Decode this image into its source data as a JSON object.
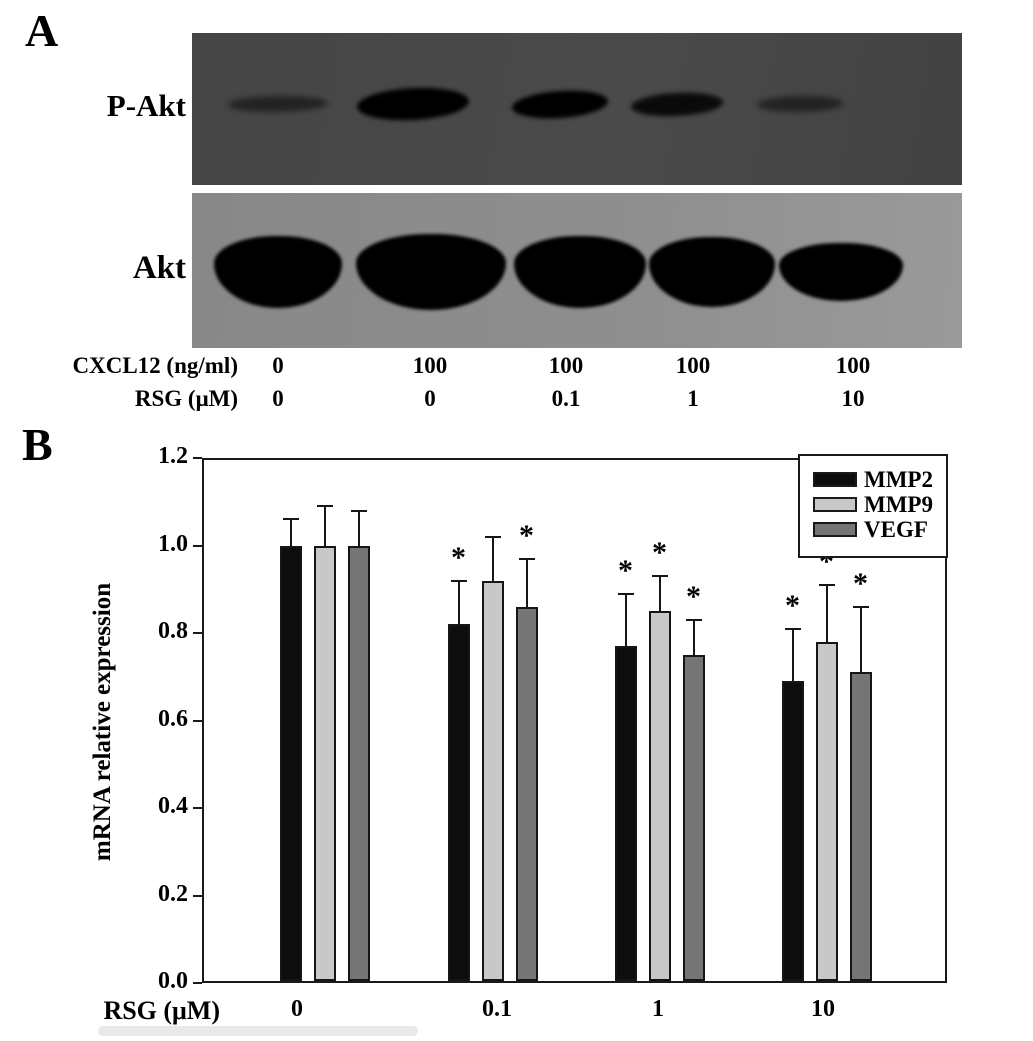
{
  "panel_a": {
    "label": "A",
    "blots": [
      {
        "label": "P-Akt",
        "band_intensities": [
          "faint",
          "strong",
          "strong",
          "medium",
          "faint"
        ]
      },
      {
        "label": "Akt",
        "band_intensities": [
          "strong",
          "strong",
          "strong",
          "strong",
          "strong"
        ]
      }
    ],
    "dose_rows": [
      {
        "label": "CXCL12 (ng/ml)",
        "values": [
          "0",
          "100",
          "100",
          "100",
          "100"
        ]
      },
      {
        "label": "RSG (μM)",
        "values": [
          "0",
          "0",
          "0.1",
          "1",
          "10"
        ]
      }
    ]
  },
  "panel_b": {
    "label": "B"
  },
  "chart_data": {
    "type": "bar",
    "title": "",
    "xlabel": "RSG (μM)",
    "ylabel": "mRNA relative expression",
    "categories": [
      "0",
      "0.1",
      "1",
      "10"
    ],
    "series": [
      {
        "name": "MMP2",
        "color": "#0d0d0d",
        "values": [
          1.0,
          0.82,
          0.77,
          0.69
        ],
        "errors": [
          0.06,
          0.1,
          0.12,
          0.12
        ],
        "significant": [
          false,
          true,
          true,
          true
        ]
      },
      {
        "name": "MMP9",
        "color": "#c8c8c8",
        "values": [
          1.0,
          0.92,
          0.85,
          0.78
        ],
        "errors": [
          0.09,
          0.1,
          0.08,
          0.13
        ],
        "significant": [
          false,
          false,
          true,
          true
        ]
      },
      {
        "name": "VEGF",
        "color": "#757575",
        "values": [
          1.0,
          0.86,
          0.75,
          0.71
        ],
        "errors": [
          0.08,
          0.11,
          0.08,
          0.15
        ],
        "significant": [
          false,
          true,
          true,
          true
        ]
      }
    ],
    "ylim": [
      0.0,
      1.2
    ],
    "yticks": [
      "0.0",
      "0.2",
      "0.4",
      "0.6",
      "0.8",
      "1.0",
      "1.2"
    ],
    "grid": false,
    "legend_position": "top-right",
    "significance_marker": "*"
  }
}
